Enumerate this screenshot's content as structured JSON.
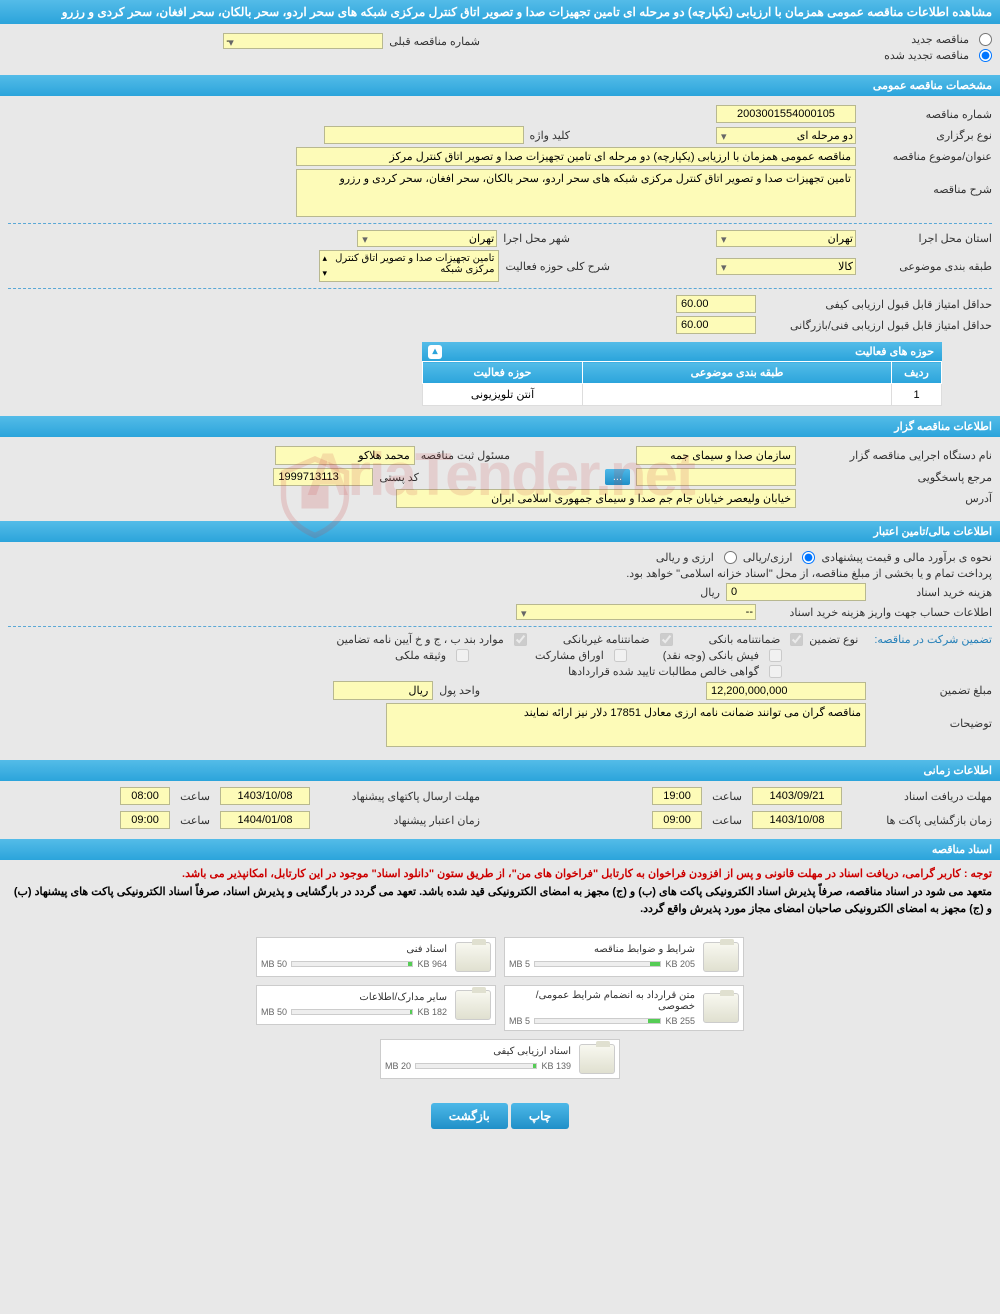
{
  "header": {
    "title": "مشاهده اطلاعات مناقصه عمومی همزمان با ارزیابی (یکپارچه) دو مرحله ای تامین تجهیزات صدا و تصویر اتاق کنترل مرکزی شبکه های سحر اردو، سحر بالکان، سحر افغان، سحر کردی و رزرو"
  },
  "top_options": {
    "new_label": "مناقصه جدید",
    "renewed_label": "مناقصه تجدید شده",
    "prev_number_label": "شماره مناقصه قبلی",
    "prev_number_value": "--"
  },
  "sections": {
    "general": "مشخصات مناقصه عمومی",
    "organizer": "اطلاعات مناقصه گزار",
    "financial": "اطلاعات مالی/تامین اعتبار",
    "timing": "اطلاعات زمانی",
    "docs": "اسناد مناقصه"
  },
  "general": {
    "number_label": "شماره مناقصه",
    "number_value": "2003001554000105",
    "type_label": "نوع برگزاری",
    "type_value": "دو مرحله ای",
    "keyword_label": "کلید واژه",
    "keyword_value": "",
    "subject_label": "عنوان/موضوع مناقصه",
    "subject_value": "مناقصه عمومی همزمان با ارزیابی (یکپارچه) دو مرحله ای تامین تجهیزات صدا و تصویر اتاق کنترل مرکز",
    "desc_label": "شرح مناقصه",
    "desc_value": "تامین تجهیزات صدا و تصویر اتاق کنترل مرکزی شبکه های سحر اردو، سحر بالکان، سحر افغان، سحر کردی و رزرو",
    "province_label": "استان محل اجرا",
    "province_value": "تهران",
    "city_label": "شهر محل اجرا",
    "city_value": "تهران",
    "category_label": "طبقه بندی موضوعی",
    "category_value": "کالا",
    "activity_scope_label": "شرح کلی حوزه فعالیت",
    "activity_scope_value": "تامین تجهیزات صدا و تصویر اتاق کنترل مرکزی شبکه",
    "min_quality_label": "حداقل امتیاز قابل قبول ارزیابی کیفی",
    "min_quality_value": "60.00",
    "min_tech_label": "حداقل امتیاز قابل قبول ارزیابی فنی/بازرگانی",
    "min_tech_value": "60.00"
  },
  "activity_table": {
    "title": "حوزه های فعالیت",
    "col_row": "ردیف",
    "col_category": "طبقه بندی موضوعی",
    "col_scope": "حوزه فعالیت",
    "row_num": "1",
    "row_category": "",
    "row_scope": "آنتن تلویزیونی"
  },
  "organizer": {
    "exec_label": "نام دستگاه اجرایی مناقصه گزار",
    "exec_value": "سازمان صدا و سیمای جمه",
    "registrar_label": "مسئول ثبت مناقصه",
    "registrar_value": "محمد هلاکو",
    "responder_label": "مرجع پاسخگویی",
    "responder_btn": "...",
    "postal_label": "کد پستی",
    "postal_value": "1999713113",
    "address_label": "آدرس",
    "address_value": "خیابان ولیعصر خیابان جام جم صدا و سیمای جمهوری اسلامی ایران"
  },
  "financial": {
    "estimate_label": "نحوه ی برآورد مالی و قیمت پیشنهادی",
    "option_rial": "ارزی/ریالی",
    "option_currency": "ارزی و ریالی",
    "payment_note": "پرداخت تمام و یا بخشی از مبلغ مناقصه، از محل \"اسناد خزانه اسلامی\" خواهد بود.",
    "cost_label": "هزینه خرید اسناد",
    "cost_value": "0",
    "cost_unit": "ریال",
    "account_label": "اطلاعات حساب جهت واریز هزینه خرید اسناد",
    "account_value": "--",
    "guarantee_intro": "تضمین شرکت در مناقصه:",
    "guarantee_type_label": "نوع تضمین",
    "opt_bank": "ضمانتنامه بانکی",
    "opt_nonbank": "ضمانتنامه غیربانکی",
    "opt_regulation": "موارد بند ب ، ج و خ آیین نامه تضامین",
    "opt_cash": "فیش بانکی (وجه نقد)",
    "opt_bonds": "اوراق مشارکت",
    "opt_property": "وثیقه ملکی",
    "opt_receivables": "گواهی خالص مطالبات تایید شده قراردادها",
    "amount_label": "مبلغ تضمین",
    "amount_value": "12,200,000,000",
    "unit_label": "واحد پول",
    "unit_value": "ریال",
    "notes_label": "توضیحات",
    "notes_value": "مناقصه گران می توانند ضمانت نامه ارزی معادل 17851 دلار نیز ارائه نمایند"
  },
  "timing": {
    "receive_label": "مهلت دریافت اسناد",
    "receive_date": "1403/09/21",
    "receive_time_label": "ساعت",
    "receive_time": "19:00",
    "send_label": "مهلت ارسال پاکتهای پیشنهاد",
    "send_date": "1403/10/08",
    "send_time_label": "ساعت",
    "send_time": "08:00",
    "open_label": "زمان بازگشایی پاکت ها",
    "open_date": "1403/10/08",
    "open_time_label": "ساعت",
    "open_time": "09:00",
    "validity_label": "زمان اعتبار پیشنهاد",
    "validity_date": "1404/01/08",
    "validity_time_label": "ساعت",
    "validity_time": "09:00"
  },
  "docs_notice": {
    "line1": "توجه : کاربر گرامی، دریافت اسناد در مهلت قانونی و پس از افزودن فراخوان به کارتابل \"فراخوان های من\"، از طریق ستون \"دانلود اسناد\" موجود در این کارتابل، امکانپذیر می باشد.",
    "line2": "متعهد می شود در اسناد مناقصه، صرفاً پذیرش اسناد الکترونیکی پاکت های (ب) و (ج) مجهز به امضای الکترونیکی قید شده باشد. تعهد می گردد در بارگشایی و پذیرش اسناد، صرفاً اسناد الکترونیکی پاکت های پیشنهاد (ب) و (ج) مجهز به امضای الکترونیکی صاحبان امضای مجاز مورد پذیرش واقع گردد."
  },
  "documents": [
    {
      "title": "شرایط و ضوابط مناقصه",
      "size": "205 KB",
      "max": "5 MB",
      "pct": 8
    },
    {
      "title": "اسناد فنی",
      "size": "964 KB",
      "max": "50 MB",
      "pct": 4
    },
    {
      "title": "متن قرارداد به انضمام شرایط عمومی/خصوصی",
      "size": "255 KB",
      "max": "5 MB",
      "pct": 10
    },
    {
      "title": "سایر مدارک/اطلاعات",
      "size": "182 KB",
      "max": "50 MB",
      "pct": 2
    },
    {
      "title": "اسناد ارزیابی کیفی",
      "size": "139 KB",
      "max": "20 MB",
      "pct": 3
    }
  ],
  "buttons": {
    "print": "چاپ",
    "back": "بازگشت"
  },
  "watermark": "AriaTender.net",
  "colors": {
    "header_bg": "#2ba4db",
    "yellow_field": "#fdfbb8",
    "red_text": "#c00"
  }
}
